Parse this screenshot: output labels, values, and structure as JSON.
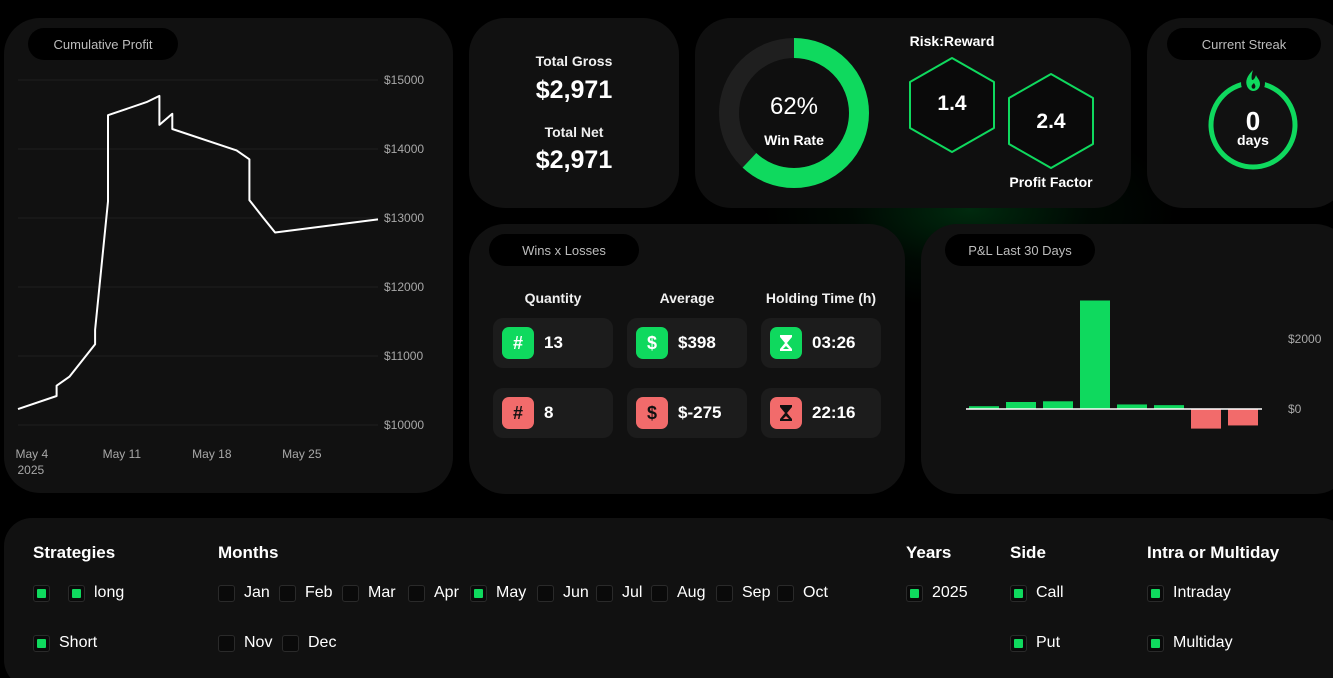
{
  "cumulative": {
    "title": "Cumulative Profit",
    "y_ticks": [
      "$15000",
      "$14000",
      "$13000",
      "$12000",
      "$11000",
      "$10000"
    ],
    "x_ticks": [
      {
        "label": "May 4",
        "sub": "2025"
      },
      {
        "label": "May 11",
        "sub": ""
      },
      {
        "label": "May 18",
        "sub": ""
      },
      {
        "label": "May 25",
        "sub": ""
      }
    ]
  },
  "chart_data": [
    {
      "type": "line",
      "title": "Cumulative Profit",
      "xlabel": "",
      "ylabel": "",
      "ylim": [
        10000,
        15000
      ],
      "x_range": [
        "2025-05-03",
        "2025-05-31"
      ],
      "grid": true,
      "points": [
        {
          "x": "2025-05-03",
          "y": 10230
        },
        {
          "x": "2025-05-06",
          "y": 10420
        },
        {
          "x": "2025-05-06",
          "y": 10570
        },
        {
          "x": "2025-05-07",
          "y": 10700
        },
        {
          "x": "2025-05-09",
          "y": 11170
        },
        {
          "x": "2025-05-09",
          "y": 11380
        },
        {
          "x": "2025-05-10",
          "y": 13240
        },
        {
          "x": "2025-05-10",
          "y": 14490
        },
        {
          "x": "2025-05-13",
          "y": 14680
        },
        {
          "x": "2025-05-14",
          "y": 14770
        },
        {
          "x": "2025-05-14",
          "y": 14350
        },
        {
          "x": "2025-05-15",
          "y": 14510
        },
        {
          "x": "2025-05-15",
          "y": 14290
        },
        {
          "x": "2025-05-20",
          "y": 13980
        },
        {
          "x": "2025-05-21",
          "y": 13850
        },
        {
          "x": "2025-05-21",
          "y": 13260
        },
        {
          "x": "2025-05-22",
          "y": 13020
        },
        {
          "x": "2025-05-23",
          "y": 12790
        },
        {
          "x": "2025-05-31",
          "y": 12980
        }
      ]
    },
    {
      "type": "bar",
      "title": "P&L Last 30 Days",
      "y_ticks": [
        "$2000",
        "$0"
      ],
      "ylim": [
        -1000,
        3500
      ],
      "values": [
        80,
        200,
        220,
        3100,
        130,
        110,
        -560,
        -470
      ]
    }
  ],
  "gross": {
    "total_gross_label": "Total Gross",
    "total_gross_value": "$2,971",
    "total_net_label": "Total Net",
    "total_net_value": "$2,971"
  },
  "winrate": {
    "percent_text": "62%",
    "percent": 0.62,
    "label": "Win Rate",
    "risk_reward_label": "Risk:Reward",
    "risk_reward_value": "1.4",
    "profit_factor_label": "Profit Factor",
    "profit_factor_value": "2.4"
  },
  "streak": {
    "title": "Current Streak",
    "value": "0",
    "unit": "days"
  },
  "wins_losses": {
    "title": "Wins x Losses",
    "headers": [
      "Quantity",
      "Average",
      "Holding Time (h)"
    ],
    "wins": {
      "quantity": "13",
      "average": "$398",
      "holding": "03:26"
    },
    "losses": {
      "quantity": "8",
      "average": "$-275",
      "holding": "22:16"
    },
    "glyph_quantity": "#",
    "glyph_average": "$"
  },
  "pnl": {
    "title": "P&L Last 30 Days"
  },
  "filters": {
    "strategies": {
      "title": "Strategies",
      "items": [
        {
          "label": "",
          "checked": true
        },
        {
          "label": "long",
          "checked": true
        },
        {
          "label": "Short",
          "checked": true
        }
      ]
    },
    "months": {
      "title": "Months",
      "items": [
        {
          "label": "Jan",
          "checked": false
        },
        {
          "label": "Feb",
          "checked": false
        },
        {
          "label": "Mar",
          "checked": false
        },
        {
          "label": "Apr",
          "checked": false
        },
        {
          "label": "May",
          "checked": true
        },
        {
          "label": "Jun",
          "checked": false
        },
        {
          "label": "Jul",
          "checked": false
        },
        {
          "label": "Aug",
          "checked": false
        },
        {
          "label": "Sep",
          "checked": false
        },
        {
          "label": "Oct",
          "checked": false
        },
        {
          "label": "Nov",
          "checked": false
        },
        {
          "label": "Dec",
          "checked": false
        }
      ]
    },
    "years": {
      "title": "Years",
      "items": [
        {
          "label": "2025",
          "checked": true
        }
      ]
    },
    "side": {
      "title": "Side",
      "items": [
        {
          "label": "Call",
          "checked": true
        },
        {
          "label": "Put",
          "checked": true
        }
      ]
    },
    "intra": {
      "title": "Intra or Multiday",
      "items": [
        {
          "label": "Intraday",
          "checked": true
        },
        {
          "label": "Multiday",
          "checked": true
        }
      ]
    }
  },
  "colors": {
    "accent": "#0fd95e",
    "loss": "#f26b6b",
    "card": "#111111"
  }
}
